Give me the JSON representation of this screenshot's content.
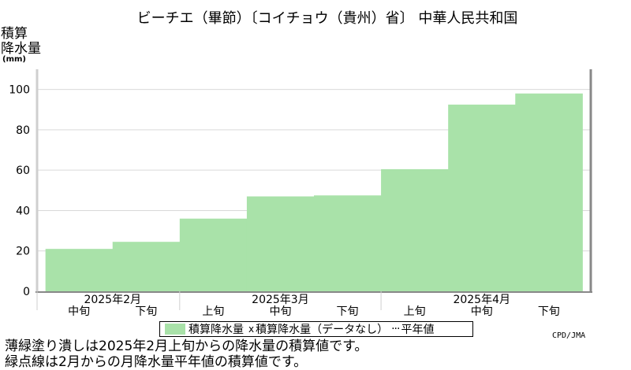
{
  "colors": {
    "fill": "#a9e2a9",
    "frame_light": "#cfcfcf",
    "frame_dark": "#888888",
    "grid": "#d9d9d9"
  },
  "chart_data": {
    "type": "area",
    "title": "ビーチエ（畢節）〔コイチョウ（貴州）省〕 中華人民共和国",
    "ylabel": [
      "積算",
      "降水量",
      "(mm)"
    ],
    "ylim": [
      0,
      110
    ],
    "yticks": [
      0,
      20,
      40,
      60,
      80,
      100
    ],
    "grid": true,
    "dekads": [
      "中旬",
      "下旬",
      "上旬",
      "中旬",
      "下旬",
      "上旬",
      "中旬",
      "下旬"
    ],
    "months": [
      {
        "label": "2025年2月",
        "start": 0,
        "count": 2
      },
      {
        "label": "2025年3月",
        "start": 2,
        "count": 3
      },
      {
        "label": "2025年4月",
        "start": 5,
        "count": 3
      }
    ],
    "series": [
      {
        "name": "積算降水量",
        "values": [
          21,
          24.5,
          36,
          47,
          47.5,
          60.5,
          92.5,
          98
        ]
      }
    ]
  },
  "legend": {
    "fill_label": "積算降水量",
    "missing_label": "積算降水量（データなし）",
    "normal_label": "平年値"
  },
  "notes": [
    "薄緑塗り潰しは2025年2月上旬からの降水量の積算値です。",
    "緑点線は2月からの月降水量平年値の積算値です。"
  ],
  "credit": "CPD/JMA"
}
